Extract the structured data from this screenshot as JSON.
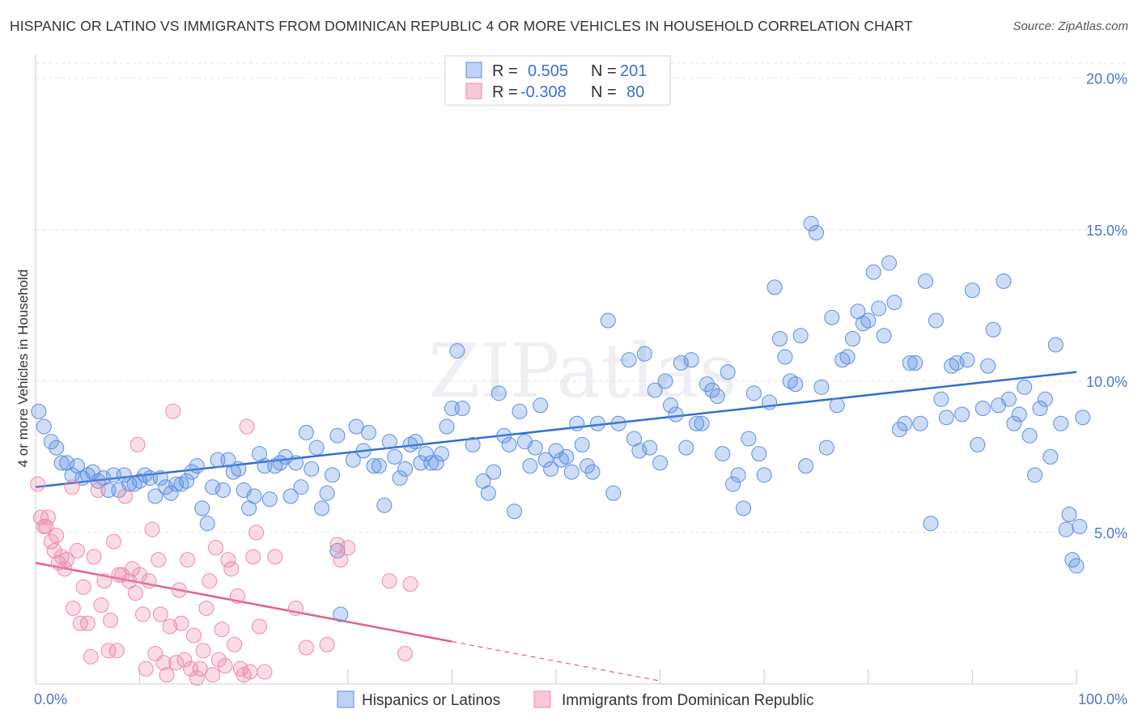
{
  "title": "HISPANIC OR LATINO VS IMMIGRANTS FROM DOMINICAN REPUBLIC 4 OR MORE VEHICLES IN HOUSEHOLD CORRELATION CHART",
  "source": "Source: ZipAtlas.com",
  "watermark": "ZIPatlas",
  "colors": {
    "blue": "#5b8fe0",
    "pink": "#ee8aaa",
    "blue_line": "#2f6fd0",
    "pink_line": "#e0608a"
  },
  "legend": {
    "r_label": "R =",
    "n_label": "N =",
    "rows": [
      {
        "r": "0.505",
        "n": "201"
      },
      {
        "r": "-0.308",
        "n": "80"
      }
    ]
  },
  "chart_data": {
    "type": "scatter",
    "xlabel": "",
    "ylabel": "4 or more Vehicles in Household",
    "xlim": [
      0,
      100
    ],
    "ylim": [
      0,
      20.5
    ],
    "x_tick_labels": [
      "0.0%",
      "100.0%"
    ],
    "y_ticks": [
      5,
      10,
      15,
      20
    ],
    "y_tick_labels": [
      "5.0%",
      "10.0%",
      "15.0%",
      "20.0%"
    ],
    "grid": true,
    "legend_position": "top-center",
    "series": [
      {
        "name": "Hispanics or Latinos",
        "color": "#5b8fe0",
        "trend": [
          [
            0,
            6.5
          ],
          [
            100,
            10.3
          ]
        ],
        "points": [
          [
            0.3,
            9.0
          ],
          [
            0.8,
            8.5
          ],
          [
            1.5,
            8.0
          ],
          [
            2.0,
            7.8
          ],
          [
            2.5,
            7.3
          ],
          [
            3.0,
            7.3
          ],
          [
            3.5,
            6.9
          ],
          [
            4.0,
            7.2
          ],
          [
            4.5,
            6.8
          ],
          [
            5.0,
            6.9
          ],
          [
            5.5,
            7.0
          ],
          [
            6.0,
            6.7
          ],
          [
            6.5,
            6.8
          ],
          [
            7.0,
            6.4
          ],
          [
            7.5,
            6.9
          ],
          [
            8.0,
            6.4
          ],
          [
            8.5,
            6.9
          ],
          [
            9.0,
            6.6
          ],
          [
            9.5,
            6.6
          ],
          [
            10.0,
            6.7
          ],
          [
            10.5,
            6.9
          ],
          [
            11.0,
            6.8
          ],
          [
            11.5,
            6.2
          ],
          [
            12.0,
            6.8
          ],
          [
            12.5,
            6.5
          ],
          [
            13.0,
            6.3
          ],
          [
            13.5,
            6.6
          ],
          [
            14.0,
            6.6
          ],
          [
            14.5,
            6.7
          ],
          [
            15.0,
            7.0
          ],
          [
            15.5,
            7.2
          ],
          [
            16.0,
            5.8
          ],
          [
            16.5,
            5.3
          ],
          [
            17.0,
            6.5
          ],
          [
            17.5,
            7.4
          ],
          [
            18.0,
            6.4
          ],
          [
            18.5,
            7.4
          ],
          [
            19.0,
            7.0
          ],
          [
            19.5,
            7.1
          ],
          [
            20.0,
            6.4
          ],
          [
            20.5,
            5.8
          ],
          [
            21.0,
            6.2
          ],
          [
            21.5,
            7.6
          ],
          [
            22.0,
            7.2
          ],
          [
            22.5,
            6.1
          ],
          [
            23.0,
            7.2
          ],
          [
            23.5,
            7.3
          ],
          [
            24.0,
            7.5
          ],
          [
            24.5,
            6.2
          ],
          [
            25.0,
            7.3
          ],
          [
            25.5,
            6.5
          ],
          [
            26.0,
            8.3
          ],
          [
            26.5,
            7.1
          ],
          [
            27.0,
            7.8
          ],
          [
            27.5,
            5.8
          ],
          [
            28.0,
            6.3
          ],
          [
            28.5,
            6.9
          ],
          [
            29.0,
            8.2
          ],
          [
            30.5,
            7.4
          ],
          [
            30.8,
            8.5
          ],
          [
            31.5,
            7.7
          ],
          [
            32.0,
            8.3
          ],
          [
            32.5,
            7.2
          ],
          [
            33.0,
            7.2
          ],
          [
            33.5,
            5.9
          ],
          [
            34.0,
            8.0
          ],
          [
            34.5,
            7.5
          ],
          [
            35.0,
            6.8
          ],
          [
            35.5,
            7.1
          ],
          [
            36.0,
            7.9
          ],
          [
            36.5,
            8.0
          ],
          [
            37.0,
            7.3
          ],
          [
            37.5,
            7.6
          ],
          [
            38.0,
            7.3
          ],
          [
            38.5,
            7.3
          ],
          [
            39.0,
            7.6
          ],
          [
            39.5,
            8.5
          ],
          [
            40.0,
            9.1
          ],
          [
            40.5,
            11.0
          ],
          [
            41.0,
            9.1
          ],
          [
            42.0,
            7.9
          ],
          [
            43.0,
            6.7
          ],
          [
            43.5,
            6.3
          ],
          [
            44.0,
            7.0
          ],
          [
            44.5,
            9.6
          ],
          [
            45.0,
            8.2
          ],
          [
            45.5,
            7.9
          ],
          [
            46.0,
            5.7
          ],
          [
            46.5,
            9.0
          ],
          [
            47.0,
            8.0
          ],
          [
            47.5,
            7.2
          ],
          [
            48.0,
            7.8
          ],
          [
            48.5,
            9.2
          ],
          [
            49.0,
            7.4
          ],
          [
            49.5,
            7.1
          ],
          [
            50.0,
            7.7
          ],
          [
            50.5,
            7.4
          ],
          [
            51.0,
            7.5
          ],
          [
            51.5,
            7.0
          ],
          [
            52.0,
            8.6
          ],
          [
            52.5,
            7.9
          ],
          [
            53.0,
            7.2
          ],
          [
            53.5,
            7.0
          ],
          [
            54.0,
            8.6
          ],
          [
            55.0,
            12.0
          ],
          [
            55.5,
            6.3
          ],
          [
            56.0,
            8.6
          ],
          [
            57.0,
            10.7
          ],
          [
            57.5,
            8.1
          ],
          [
            58.0,
            7.7
          ],
          [
            58.5,
            10.9
          ],
          [
            59.0,
            7.8
          ],
          [
            59.5,
            9.7
          ],
          [
            60.0,
            7.3
          ],
          [
            60.5,
            10.0
          ],
          [
            61.0,
            9.2
          ],
          [
            61.5,
            8.9
          ],
          [
            62.0,
            10.6
          ],
          [
            62.5,
            7.8
          ],
          [
            63.0,
            10.7
          ],
          [
            63.5,
            8.6
          ],
          [
            64.0,
            8.6
          ],
          [
            64.5,
            9.9
          ],
          [
            65.0,
            9.7
          ],
          [
            65.5,
            9.5
          ],
          [
            66.0,
            7.6
          ],
          [
            66.5,
            10.3
          ],
          [
            67.0,
            6.6
          ],
          [
            67.5,
            6.9
          ],
          [
            68.0,
            5.8
          ],
          [
            68.5,
            8.1
          ],
          [
            69.0,
            9.6
          ],
          [
            69.5,
            7.6
          ],
          [
            70.0,
            6.9
          ],
          [
            70.5,
            9.3
          ],
          [
            71.0,
            13.1
          ],
          [
            71.5,
            11.4
          ],
          [
            72.0,
            10.8
          ],
          [
            72.5,
            10.0
          ],
          [
            73.0,
            9.9
          ],
          [
            73.5,
            11.5
          ],
          [
            74.0,
            7.2
          ],
          [
            74.5,
            15.2
          ],
          [
            75.0,
            14.9
          ],
          [
            75.5,
            9.8
          ],
          [
            76.0,
            7.8
          ],
          [
            76.5,
            12.1
          ],
          [
            77.0,
            9.2
          ],
          [
            77.5,
            10.7
          ],
          [
            78.0,
            10.8
          ],
          [
            78.5,
            11.4
          ],
          [
            79.0,
            12.3
          ],
          [
            79.5,
            11.9
          ],
          [
            80.0,
            12.0
          ],
          [
            80.5,
            13.6
          ],
          [
            81.0,
            12.4
          ],
          [
            81.5,
            11.5
          ],
          [
            82.0,
            13.9
          ],
          [
            82.5,
            12.6
          ],
          [
            83.0,
            8.4
          ],
          [
            83.5,
            8.6
          ],
          [
            84.0,
            10.6
          ],
          [
            84.5,
            10.6
          ],
          [
            85.0,
            8.6
          ],
          [
            85.5,
            13.3
          ],
          [
            86.0,
            5.3
          ],
          [
            86.5,
            12.0
          ],
          [
            87.0,
            9.4
          ],
          [
            87.5,
            8.8
          ],
          [
            88.0,
            10.5
          ],
          [
            88.5,
            10.6
          ],
          [
            89.0,
            8.9
          ],
          [
            89.5,
            10.7
          ],
          [
            90.0,
            13.0
          ],
          [
            90.5,
            7.9
          ],
          [
            91.0,
            9.1
          ],
          [
            91.5,
            10.5
          ],
          [
            92.0,
            11.7
          ],
          [
            92.5,
            9.2
          ],
          [
            93.0,
            13.3
          ],
          [
            93.5,
            9.4
          ],
          [
            94.0,
            8.6
          ],
          [
            94.5,
            8.9
          ],
          [
            95.0,
            9.8
          ],
          [
            95.5,
            8.2
          ],
          [
            96.0,
            6.9
          ],
          [
            96.5,
            9.1
          ],
          [
            97.0,
            9.4
          ],
          [
            97.5,
            7.5
          ],
          [
            98.0,
            11.2
          ],
          [
            98.5,
            8.6
          ],
          [
            99.0,
            5.1
          ],
          [
            99.3,
            5.6
          ],
          [
            99.6,
            4.1
          ],
          [
            100.0,
            3.9
          ],
          [
            100.3,
            5.2
          ],
          [
            100.6,
            8.8
          ],
          [
            29.0,
            4.4
          ],
          [
            29.3,
            2.3
          ]
        ]
      },
      {
        "name": "Immigrants from Dominican Republic",
        "color": "#ee8aaa",
        "trend": [
          [
            0,
            4.0
          ],
          [
            40,
            1.4
          ]
        ],
        "trend_dashed": [
          [
            40,
            1.4
          ],
          [
            60,
            0.1
          ]
        ],
        "points": [
          [
            0.2,
            6.6
          ],
          [
            0.5,
            5.5
          ],
          [
            0.8,
            5.2
          ],
          [
            1.0,
            5.2
          ],
          [
            1.2,
            5.5
          ],
          [
            1.5,
            4.7
          ],
          [
            1.8,
            4.4
          ],
          [
            2.0,
            4.9
          ],
          [
            2.2,
            4.0
          ],
          [
            2.5,
            4.2
          ],
          [
            2.8,
            3.8
          ],
          [
            3.0,
            4.1
          ],
          [
            3.5,
            6.5
          ],
          [
            3.6,
            2.5
          ],
          [
            4.0,
            4.4
          ],
          [
            4.3,
            2.0
          ],
          [
            4.6,
            3.2
          ],
          [
            5.0,
            2.0
          ],
          [
            5.3,
            0.9
          ],
          [
            5.6,
            4.2
          ],
          [
            6.0,
            6.4
          ],
          [
            6.3,
            2.6
          ],
          [
            6.6,
            3.4
          ],
          [
            7.0,
            1.1
          ],
          [
            7.2,
            2.1
          ],
          [
            7.5,
            4.7
          ],
          [
            7.8,
            1.1
          ],
          [
            8.0,
            3.6
          ],
          [
            8.3,
            3.6
          ],
          [
            8.6,
            6.2
          ],
          [
            9.0,
            3.4
          ],
          [
            9.3,
            3.8
          ],
          [
            9.6,
            3.0
          ],
          [
            9.8,
            7.9
          ],
          [
            10.0,
            3.6
          ],
          [
            10.3,
            2.3
          ],
          [
            10.6,
            0.5
          ],
          [
            10.9,
            3.4
          ],
          [
            11.2,
            5.1
          ],
          [
            11.5,
            1.0
          ],
          [
            11.8,
            4.1
          ],
          [
            12.0,
            2.3
          ],
          [
            12.3,
            0.7
          ],
          [
            12.6,
            0.3
          ],
          [
            12.9,
            1.9
          ],
          [
            13.2,
            9.0
          ],
          [
            13.5,
            0.7
          ],
          [
            13.8,
            3.1
          ],
          [
            14.0,
            2.0
          ],
          [
            14.3,
            0.8
          ],
          [
            14.6,
            4.1
          ],
          [
            14.9,
            0.5
          ],
          [
            15.2,
            1.6
          ],
          [
            15.5,
            0.2
          ],
          [
            15.8,
            0.5
          ],
          [
            16.1,
            1.1
          ],
          [
            16.4,
            2.5
          ],
          [
            16.7,
            3.4
          ],
          [
            17.0,
            0.3
          ],
          [
            17.3,
            4.5
          ],
          [
            17.6,
            0.8
          ],
          [
            17.9,
            1.8
          ],
          [
            18.2,
            0.6
          ],
          [
            18.5,
            4.1
          ],
          [
            18.8,
            3.8
          ],
          [
            19.1,
            1.3
          ],
          [
            19.4,
            2.9
          ],
          [
            19.7,
            0.5
          ],
          [
            20.0,
            0.3
          ],
          [
            20.3,
            8.5
          ],
          [
            20.6,
            0.4
          ],
          [
            20.9,
            4.2
          ],
          [
            21.2,
            5.0
          ],
          [
            21.5,
            1.9
          ],
          [
            22.0,
            0.4
          ],
          [
            23.0,
            4.2
          ],
          [
            25.0,
            2.5
          ],
          [
            26.0,
            1.2
          ],
          [
            29.0,
            4.6
          ],
          [
            30.0,
            4.5
          ],
          [
            34.0,
            3.4
          ],
          [
            36.0,
            3.3
          ],
          [
            35.5,
            1.0
          ],
          [
            29.3,
            4.1
          ],
          [
            28.0,
            1.3
          ]
        ]
      }
    ]
  },
  "bottom_legend": [
    "Hispanics or Latinos",
    "Immigrants from Dominican Republic"
  ]
}
